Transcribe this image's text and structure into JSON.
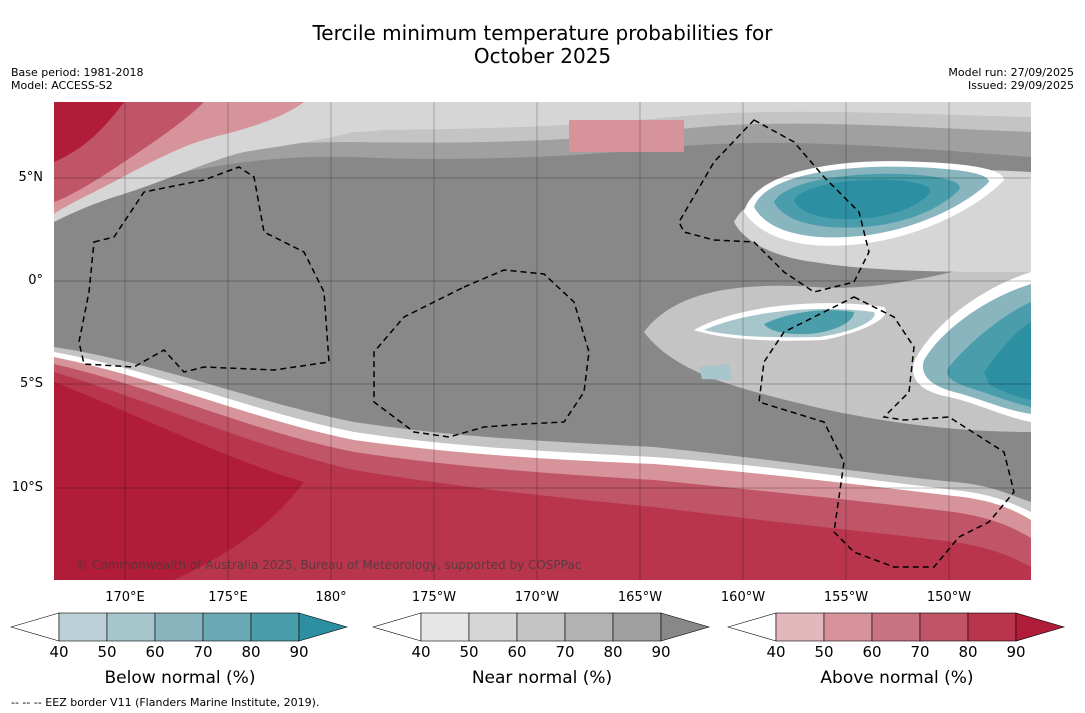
{
  "title": {
    "line1": "Tercile minimum temperature probabilities for",
    "line2": "October 2025"
  },
  "meta": {
    "base_period": "Base period: 1981-2018",
    "model": "Model: ACCESS-S2",
    "model_run": "Model run: 27/09/2025",
    "issued": "Issued: 29/09/2025"
  },
  "map": {
    "lat_labels": [
      "5°N",
      "0°",
      "5°S",
      "10°S"
    ],
    "lon_labels": [
      "170°E",
      "175°E",
      "180°",
      "175°W",
      "170°W",
      "165°W",
      "160°W",
      "155°W",
      "150°W"
    ],
    "copyright": "© Commonwealth of Australia 2025, Bureau of Meteorology, supported by COSPPac"
  },
  "colorbars": {
    "below": {
      "label": "Below normal (%)",
      "ticks": [
        "40",
        "50",
        "60",
        "70",
        "80",
        "90"
      ],
      "colors": [
        "#ffffff",
        "#bcd1d7",
        "#a6c6cc",
        "#88b5be",
        "#6aa9b4",
        "#4a9eab",
        "#2c8fa2"
      ]
    },
    "near": {
      "label": "Near normal (%)",
      "ticks": [
        "40",
        "50",
        "60",
        "70",
        "80",
        "90"
      ],
      "colors": [
        "#ffffff",
        "#e6e6e6",
        "#d6d6d6",
        "#c4c4c4",
        "#b2b2b2",
        "#a0a0a0",
        "#888888"
      ]
    },
    "above": {
      "label": "Above normal (%)",
      "ticks": [
        "40",
        "50",
        "60",
        "70",
        "80",
        "90"
      ],
      "colors": [
        "#ffffff",
        "#e3b8bc",
        "#d6949a",
        "#c97380",
        "#bf5566",
        "#b8354c",
        "#b11c38"
      ]
    }
  },
  "footnote": "-- -- -- EEZ border V11 (Flanders Marine Institute, 2019)."
}
